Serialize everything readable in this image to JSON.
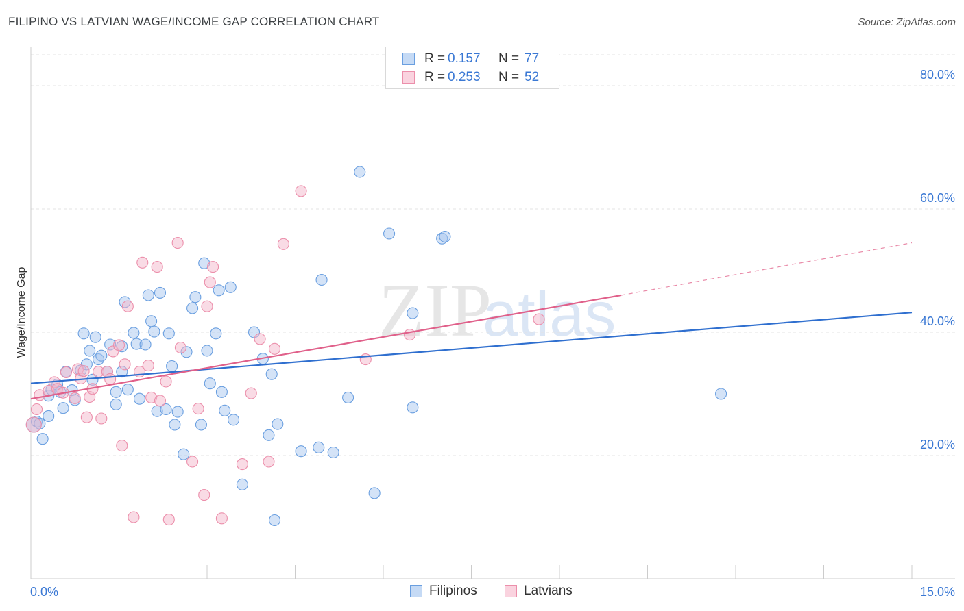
{
  "header": {
    "title": "FILIPINO VS LATVIAN WAGE/INCOME GAP CORRELATION CHART",
    "source": "Source: ZipAtlas.com"
  },
  "watermark": {
    "zip": "ZIP",
    "atlas": "atlas"
  },
  "legend": {
    "rows": [
      {
        "r_label": "R =",
        "r_value": "0.157",
        "n_label": "N =",
        "n_value": "77",
        "color": "#a9c8f0"
      },
      {
        "r_label": "R =",
        "r_value": "0.253",
        "n_label": "N =",
        "n_value": "52",
        "color": "#f4b8cb"
      }
    ]
  },
  "chart_data": {
    "type": "scatter",
    "title": "FILIPINO VS LATVIAN WAGE/INCOME GAP CORRELATION CHART",
    "xlabel": "",
    "ylabel": "Wage/Income Gap",
    "xlim": [
      0,
      15
    ],
    "ylim": [
      0,
      85
    ],
    "x_tick_labels": [
      "0.0%",
      "15.0%"
    ],
    "y_ticks": [
      20,
      40,
      60,
      80
    ],
    "y_tick_labels": [
      "20.0%",
      "40.0%",
      "60.0%",
      "80.0%"
    ],
    "grid": true,
    "legend_position": "top-center",
    "series": [
      {
        "name": "Filipinos",
        "color": "#6a9fe0",
        "fill": "#a9c8f0",
        "trend": {
          "x": [
            0,
            15
          ],
          "y": [
            31.7,
            43.2
          ],
          "color": "#2f6fcf"
        },
        "points": [
          [
            0.05,
            25
          ],
          [
            0.1,
            25.5
          ],
          [
            0.15,
            25.2
          ],
          [
            0.2,
            22.7
          ],
          [
            0.3,
            26.4
          ],
          [
            0.3,
            29.7
          ],
          [
            0.35,
            30.7
          ],
          [
            0.45,
            31.5
          ],
          [
            0.5,
            30.3
          ],
          [
            0.55,
            27.7
          ],
          [
            0.6,
            33.6
          ],
          [
            0.7,
            30.6
          ],
          [
            0.75,
            29
          ],
          [
            0.85,
            33.8
          ],
          [
            0.9,
            39.8
          ],
          [
            0.95,
            34.8
          ],
          [
            1.0,
            37
          ],
          [
            1.05,
            32.3
          ],
          [
            1.1,
            39.2
          ],
          [
            1.15,
            35.6
          ],
          [
            1.2,
            36.2
          ],
          [
            1.3,
            33.6
          ],
          [
            1.35,
            38
          ],
          [
            1.45,
            30.3
          ],
          [
            1.45,
            28.3
          ],
          [
            1.55,
            33.6
          ],
          [
            1.55,
            37.7
          ],
          [
            1.6,
            44.9
          ],
          [
            1.65,
            30.7
          ],
          [
            1.75,
            39.9
          ],
          [
            1.8,
            38.1
          ],
          [
            1.85,
            29.2
          ],
          [
            1.95,
            38
          ],
          [
            2.0,
            46
          ],
          [
            2.05,
            41.8
          ],
          [
            2.1,
            40.1
          ],
          [
            2.15,
            27.2
          ],
          [
            2.2,
            46.4
          ],
          [
            2.3,
            27.5
          ],
          [
            2.35,
            39.8
          ],
          [
            2.4,
            34.5
          ],
          [
            2.45,
            25
          ],
          [
            2.5,
            27.1
          ],
          [
            2.6,
            20.2
          ],
          [
            2.65,
            36.8
          ],
          [
            2.75,
            43.9
          ],
          [
            2.8,
            45.7
          ],
          [
            2.9,
            25
          ],
          [
            2.95,
            51.2
          ],
          [
            3.0,
            37
          ],
          [
            3.05,
            31.7
          ],
          [
            3.15,
            39.8
          ],
          [
            3.2,
            46.8
          ],
          [
            3.25,
            30.3
          ],
          [
            3.3,
            27.3
          ],
          [
            3.4,
            47.3
          ],
          [
            3.45,
            25.8
          ],
          [
            3.6,
            15.3
          ],
          [
            3.8,
            40
          ],
          [
            3.95,
            35.7
          ],
          [
            4.05,
            23.3
          ],
          [
            4.1,
            33.2
          ],
          [
            4.15,
            9.5
          ],
          [
            4.2,
            25.1
          ],
          [
            4.6,
            20.7
          ],
          [
            4.9,
            21.3
          ],
          [
            4.95,
            48.5
          ],
          [
            5.15,
            20.5
          ],
          [
            5.4,
            29.4
          ],
          [
            5.6,
            66
          ],
          [
            5.85,
            13.9
          ],
          [
            6.1,
            56
          ],
          [
            6.5,
            43.1
          ],
          [
            6.5,
            27.8
          ],
          [
            7.0,
            55.2
          ],
          [
            7.05,
            55.5
          ],
          [
            11.75,
            30
          ]
        ]
      },
      {
        "name": "Latvians",
        "color": "#ec8fab",
        "fill": "#f4b8cb",
        "trend": {
          "x": [
            0,
            10.05
          ],
          "y": [
            29.2,
            46.0
          ],
          "color": "#e0608a"
        },
        "trend_dashed": {
          "x": [
            10.05,
            15
          ],
          "y": [
            46.0,
            54.5
          ],
          "color": "#e98aa8"
        },
        "points": [
          [
            0.05,
            25
          ],
          [
            0.1,
            27.5
          ],
          [
            0.15,
            29.8
          ],
          [
            0.3,
            30.5
          ],
          [
            0.4,
            31.9
          ],
          [
            0.45,
            30.8
          ],
          [
            0.55,
            30.2
          ],
          [
            0.6,
            33.5
          ],
          [
            0.75,
            29.3
          ],
          [
            0.8,
            34
          ],
          [
            0.85,
            32.5
          ],
          [
            0.9,
            33.7
          ],
          [
            0.95,
            26.2
          ],
          [
            1.0,
            29.5
          ],
          [
            1.05,
            30.8
          ],
          [
            1.15,
            33.6
          ],
          [
            1.2,
            26
          ],
          [
            1.3,
            33.6
          ],
          [
            1.35,
            32.4
          ],
          [
            1.4,
            36.9
          ],
          [
            1.5,
            37.9
          ],
          [
            1.55,
            21.6
          ],
          [
            1.6,
            34.8
          ],
          [
            1.65,
            44.2
          ],
          [
            1.75,
            10
          ],
          [
            1.85,
            33.6
          ],
          [
            1.9,
            51.3
          ],
          [
            2.0,
            34.6
          ],
          [
            2.05,
            29.4
          ],
          [
            2.15,
            50.6
          ],
          [
            2.2,
            28.9
          ],
          [
            2.3,
            32
          ],
          [
            2.35,
            9.6
          ],
          [
            2.5,
            54.5
          ],
          [
            2.55,
            37.5
          ],
          [
            2.75,
            19
          ],
          [
            2.85,
            27.6
          ],
          [
            2.95,
            13.6
          ],
          [
            3.0,
            44.2
          ],
          [
            3.05,
            48.1
          ],
          [
            3.1,
            50.6
          ],
          [
            3.25,
            9.8
          ],
          [
            3.6,
            18.6
          ],
          [
            3.75,
            30.1
          ],
          [
            3.9,
            38.9
          ],
          [
            4.05,
            19
          ],
          [
            4.15,
            37.3
          ],
          [
            4.3,
            54.3
          ],
          [
            4.6,
            62.9
          ],
          [
            5.7,
            35.6
          ],
          [
            6.45,
            39.6
          ],
          [
            8.65,
            42.1
          ]
        ]
      }
    ]
  }
}
